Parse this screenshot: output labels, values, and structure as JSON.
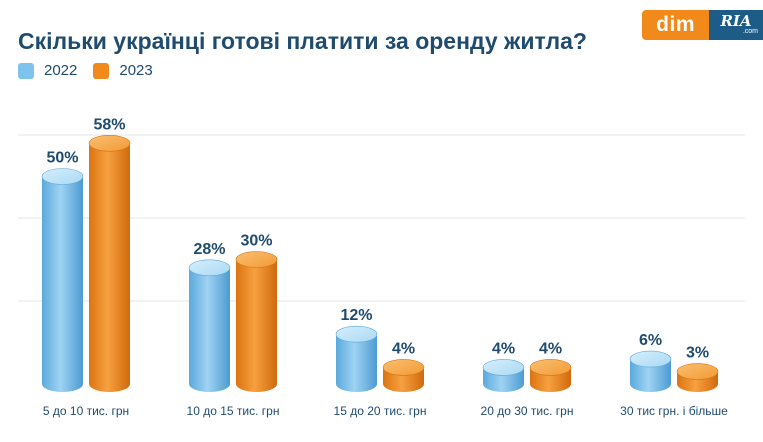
{
  "header": {
    "title": "Скільки українці готові платити за оренду житла?"
  },
  "logo": {
    "dim": "dim",
    "ria": "RIA",
    "ria_sub": ".com"
  },
  "colors": {
    "series_2022": "#7ec3ec",
    "series_2023": "#f28a1b",
    "title": "#1f4b6e",
    "grid": "#e2e5ea"
  },
  "chart_data": {
    "type": "bar",
    "title": "Скільки українці готові платити за оренду житла?",
    "categories": [
      "5 до 10 тис. грн",
      "10 до 15 тис. грн",
      "15 до 20 тис. грн",
      "20 до 30 тис. грн",
      "30 тис грн. і більше"
    ],
    "series": [
      {
        "name": "2022",
        "values": [
          50,
          28,
          12,
          4,
          6
        ],
        "labels": [
          "50%",
          "28%",
          "12%",
          "4%",
          "6%"
        ]
      },
      {
        "name": "2023",
        "values": [
          58,
          30,
          4,
          4,
          3
        ],
        "labels": [
          "58%",
          "30%",
          "4%",
          "4%",
          "3%"
        ]
      }
    ],
    "ylim": [
      0,
      60
    ],
    "grid": true,
    "legend": "top-left",
    "style": "3d-cylinder"
  }
}
